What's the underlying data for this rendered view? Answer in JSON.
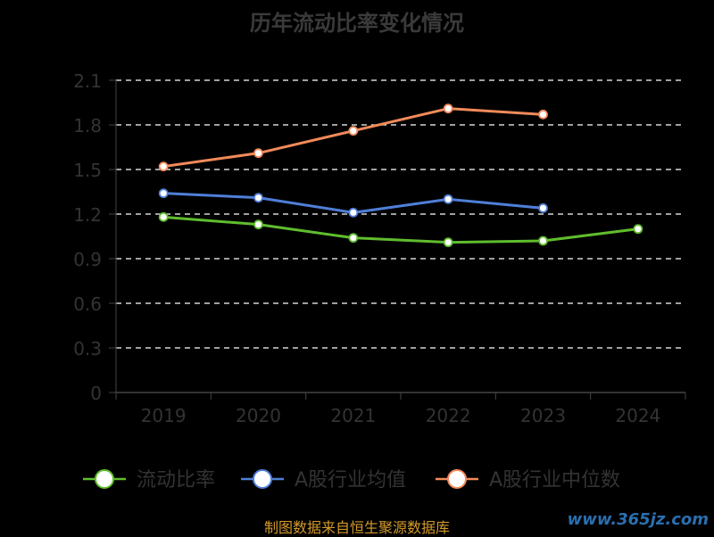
{
  "chart_data": {
    "type": "line",
    "title": "历年流动比率变化情况",
    "categories": [
      "2019",
      "2020",
      "2021",
      "2022",
      "2023",
      "2024"
    ],
    "ylim": [
      0,
      2.1
    ],
    "yticks": [
      "0",
      "0.3",
      "0.6",
      "0.9",
      "1.2",
      "1.5",
      "1.8",
      "2.1"
    ],
    "grid": true,
    "legend_position": "bottom",
    "series": [
      {
        "name": "流动比率",
        "color": "#5fbd2d",
        "values": [
          1.18,
          1.13,
          1.04,
          1.01,
          1.02,
          1.1
        ]
      },
      {
        "name": "A股行业均值",
        "color": "#4f7fd8",
        "values": [
          1.34,
          1.31,
          1.21,
          1.3,
          1.24,
          null
        ]
      },
      {
        "name": "A股行业中位数",
        "color": "#f28a5a",
        "values": [
          1.52,
          1.61,
          1.76,
          1.91,
          1.87,
          null
        ]
      }
    ]
  },
  "footer": {
    "source": "制图数据来自恒生聚源数据库",
    "watermark": "www.365jz.com"
  }
}
